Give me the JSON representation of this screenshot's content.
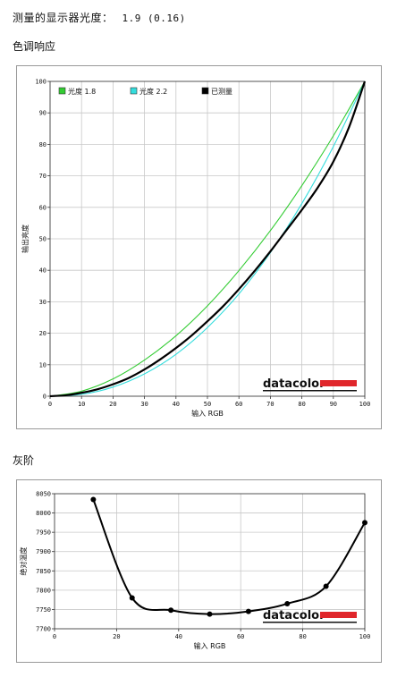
{
  "header": {
    "measured_label": "测量的显示器光度：",
    "measured_value": "1.9 (0.16)"
  },
  "sections": {
    "gamma_title": "色调响应",
    "gray_title": "灰阶"
  },
  "logo": {
    "text": "datacolor",
    "bar_color": "#e0262b"
  },
  "chart_data": [
    {
      "type": "line",
      "xlabel": "输入 RGB",
      "ylabel": "输出亮度",
      "xlim": [
        0,
        100
      ],
      "ylim": [
        0,
        100
      ],
      "xticks": [
        "0",
        "10",
        "20",
        "30",
        "40",
        "50",
        "60",
        "70",
        "80",
        "90",
        "100"
      ],
      "yticks": [
        "0",
        "10",
        "20",
        "30",
        "40",
        "50",
        "60",
        "70",
        "80",
        "90",
        "100"
      ],
      "grid": true,
      "legend_position": "top-left",
      "series": [
        {
          "name": "光度 1.8",
          "color": "#33cc33",
          "x": [
            0,
            10,
            20,
            30,
            40,
            50,
            60,
            70,
            80,
            90,
            100
          ],
          "y": [
            0,
            1.6,
            5.5,
            11.5,
            19.2,
            28.7,
            39.9,
            52.6,
            66.9,
            82.7,
            100
          ]
        },
        {
          "name": "光度 2.2",
          "color": "#33dddd",
          "x": [
            0,
            10,
            20,
            30,
            40,
            50,
            60,
            70,
            80,
            90,
            100
          ],
          "y": [
            0,
            0.6,
            2.9,
            7.1,
            13.3,
            21.8,
            32.5,
            45.6,
            61.2,
            79.3,
            100
          ]
        },
        {
          "name": "已测量",
          "color": "#000000",
          "x": [
            0,
            5,
            10,
            15,
            20,
            25,
            30,
            35,
            40,
            45,
            50,
            55,
            60,
            65,
            70,
            75,
            80,
            85,
            90,
            95,
            100
          ],
          "y": [
            0,
            0.3,
            1.1,
            2.2,
            3.8,
            5.8,
            8.5,
            11.7,
            15.3,
            19.3,
            23.8,
            28.6,
            34.0,
            39.8,
            46.0,
            52.6,
            59.2,
            66.2,
            74.5,
            85.5,
            100
          ]
        }
      ]
    },
    {
      "type": "line",
      "xlabel": "输入 RGB",
      "ylabel": "绝对温度",
      "xlim": [
        0,
        100
      ],
      "ylim": [
        7700,
        8050
      ],
      "xticks": [
        "0",
        "20",
        "40",
        "60",
        "80",
        "100"
      ],
      "yticks": [
        "7700",
        "7750",
        "7800",
        "7850",
        "7900",
        "7950",
        "8000",
        "8050"
      ],
      "grid": true,
      "series": [
        {
          "name": "",
          "color": "#000000",
          "x": [
            12.5,
            25,
            37.5,
            50,
            62.5,
            75,
            87.5,
            100
          ],
          "y": [
            8035,
            7780,
            7748,
            7738,
            7745,
            7765,
            7810,
            7975
          ]
        }
      ]
    }
  ]
}
